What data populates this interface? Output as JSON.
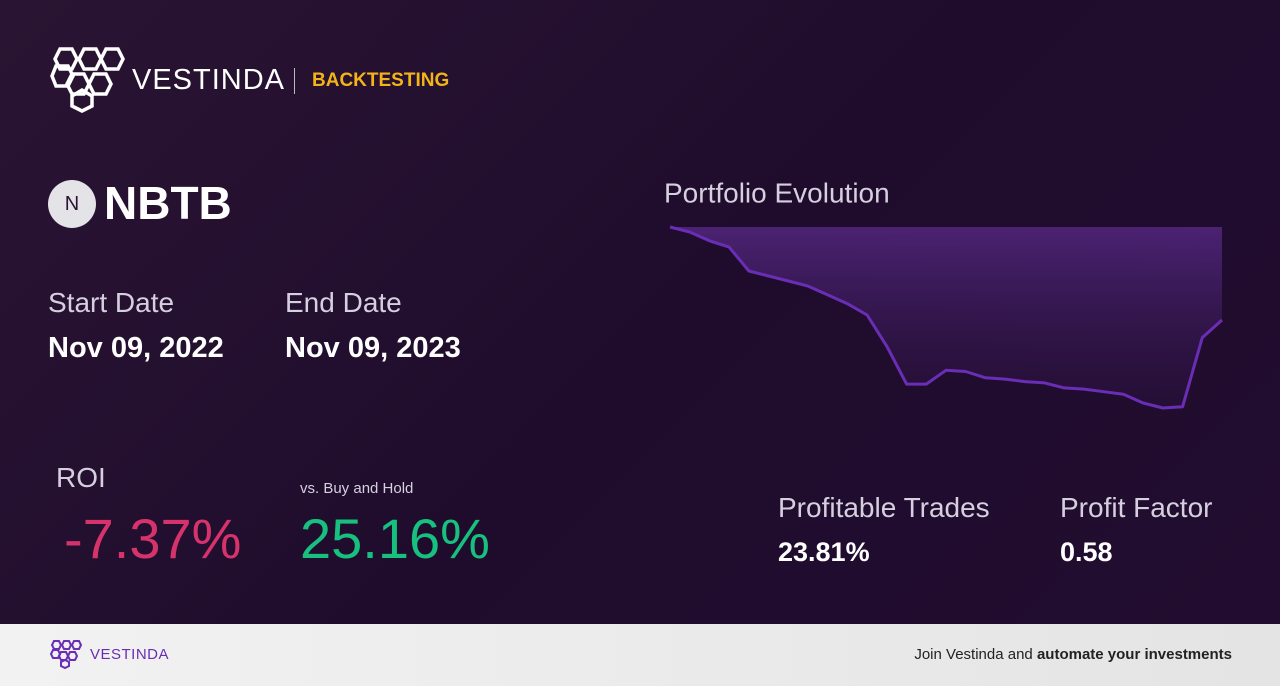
{
  "header": {
    "brand": "VESTINDA",
    "section": "BACKTESTING"
  },
  "ticker": {
    "icon": "N",
    "symbol": "NBTB"
  },
  "dates": {
    "start_label": "Start Date",
    "start_value": "Nov 09, 2022",
    "end_label": "End Date",
    "end_value": "Nov 09, 2023"
  },
  "roi": {
    "label": "ROI",
    "value": "-7.37%",
    "vs_label": "vs. Buy and Hold",
    "vs_value": "25.16%"
  },
  "stats": {
    "profitable_label": "Profitable Trades",
    "profitable_value": "23.81%",
    "factor_label": "Profit Factor",
    "factor_value": "0.58"
  },
  "chart_data": {
    "type": "line",
    "title": "Portfolio Evolution",
    "color": "#6a2db5",
    "values": [
      100,
      99.6,
      98.9,
      98.4,
      96.5,
      96.1,
      95.7,
      95.3,
      94.6,
      93.9,
      93.0,
      90.5,
      87.5,
      87.5,
      88.6,
      88.5,
      88.0,
      87.9,
      87.7,
      87.6,
      87.2,
      87.1,
      86.9,
      86.7,
      86.0,
      85.6,
      85.7,
      91.2,
      92.6
    ]
  },
  "footer": {
    "brand": "VESTINDA",
    "cta_text": "Join Vestinda and",
    "cta_bold": "automate your investments"
  }
}
